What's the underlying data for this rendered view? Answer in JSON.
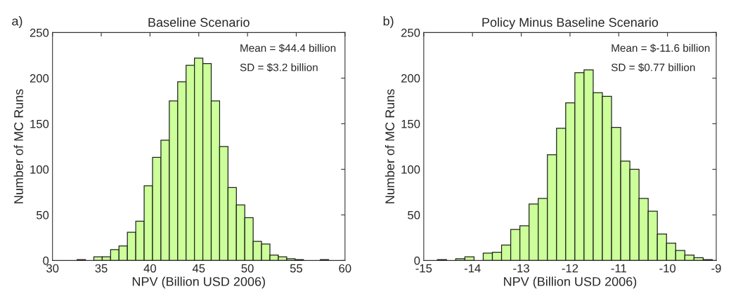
{
  "chart_data": [
    {
      "type": "histogram",
      "title": "Baseline Scenario",
      "xlabel": "NPV (Billion USD 2006)",
      "ylabel": "Number of MC Runs",
      "annotations": [
        "a)",
        "Mean = $44.4 billion",
        "SD = $3.2 billion"
      ],
      "bins": [
        32.52,
        33.38,
        34.24,
        35.1,
        35.96,
        36.82,
        37.68,
        38.54,
        39.4,
        40.26,
        41.12,
        41.98,
        42.84,
        43.7,
        44.56,
        45.42,
        46.28,
        47.14,
        48.0,
        48.86,
        49.72,
        50.58,
        51.44,
        52.3,
        53.16,
        54.02,
        54.88,
        55.74,
        56.6,
        57.46,
        58.32
      ],
      "values": [
        1,
        0,
        4,
        4,
        12,
        16,
        31,
        43,
        82,
        113,
        132,
        175,
        196,
        214,
        222,
        216,
        175,
        125,
        80,
        61,
        47,
        21,
        18,
        6,
        4,
        2,
        1,
        0,
        0,
        1
      ],
      "color": "#ccff99",
      "xlim": [
        30,
        60
      ],
      "xticks": [
        30,
        35,
        40,
        45,
        50,
        55,
        60
      ],
      "ylim": [
        0,
        250
      ],
      "yticks": [
        0,
        50,
        100,
        150,
        200,
        250
      ],
      "grid": false
    },
    {
      "type": "histogram",
      "title": "Policy Minus Baseline Scenario",
      "xlabel": "NPV (Billion USD 2006)",
      "ylabel": "Number of MC Runs",
      "annotations": [
        "b)",
        "Mean = $-11.6 billion",
        "SD = $0.77 billion"
      ],
      "bins": [
        -14.72,
        -14.532,
        -14.344,
        -14.156,
        -13.968,
        -13.78,
        -13.592,
        -13.404,
        -13.216,
        -13.028,
        -12.84,
        -12.652,
        -12.464,
        -12.276,
        -12.088,
        -11.9,
        -11.712,
        -11.524,
        -11.336,
        -11.148,
        -10.96,
        -10.772,
        -10.584,
        -10.396,
        -10.208,
        -10.02,
        -9.832,
        -9.644,
        -9.456,
        -9.268,
        -9.08
      ],
      "values": [
        1,
        0,
        2,
        4,
        0,
        8,
        9,
        17,
        34,
        38,
        62,
        68,
        116,
        145,
        173,
        206,
        209,
        184,
        180,
        146,
        109,
        100,
        68,
        54,
        29,
        19,
        11,
        6,
        3,
        1
      ],
      "color": "#ccff99",
      "xlim": [
        -15,
        -9
      ],
      "xticks": [
        -15,
        -14,
        -13,
        -12,
        -11,
        -10,
        -9
      ],
      "ylim": [
        0,
        250
      ],
      "yticks": [
        0,
        50,
        100,
        150,
        200,
        250
      ],
      "grid": false
    }
  ]
}
